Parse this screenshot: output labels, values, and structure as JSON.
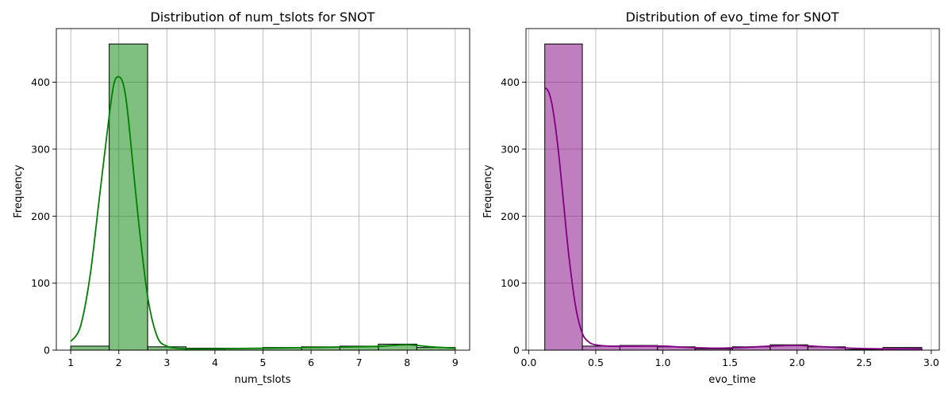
{
  "chart_data": [
    {
      "type": "bar",
      "title": "Distribution of num_tslots for SNOT",
      "xlabel": "num_tslots",
      "ylabel": "Frequency",
      "xlim": [
        0.7,
        9.3
      ],
      "ylim": [
        0,
        480
      ],
      "grid": true,
      "x_ticks": [
        1,
        2,
        3,
        4,
        5,
        6,
        7,
        8,
        9
      ],
      "y_ticks": [
        0,
        100,
        200,
        300,
        400
      ],
      "bar_color": "#008000",
      "bins": [
        {
          "x0": 1.0,
          "x1": 1.8,
          "count": 6
        },
        {
          "x0": 1.8,
          "x1": 2.6,
          "count": 457
        },
        {
          "x0": 2.6,
          "x1": 3.4,
          "count": 5
        },
        {
          "x0": 3.4,
          "x1": 4.2,
          "count": 3
        },
        {
          "x0": 4.2,
          "x1": 5.0,
          "count": 3
        },
        {
          "x0": 5.0,
          "x1": 5.8,
          "count": 4
        },
        {
          "x0": 5.8,
          "x1": 6.6,
          "count": 5
        },
        {
          "x0": 6.6,
          "x1": 7.4,
          "count": 6
        },
        {
          "x0": 7.4,
          "x1": 8.2,
          "count": 9
        },
        {
          "x0": 8.2,
          "x1": 9.0,
          "count": 4
        }
      ],
      "kde": {
        "x": [
          1.0,
          1.2,
          1.4,
          1.6,
          1.8,
          1.9,
          2.0,
          2.1,
          2.2,
          2.4,
          2.6,
          2.8,
          3.0,
          3.2,
          3.4,
          4.0,
          5.0,
          6.0,
          7.0,
          7.5,
          8.0,
          8.5,
          9.0
        ],
        "y": [
          13,
          35,
          110,
          230,
          350,
          398,
          408,
          395,
          345,
          200,
          80,
          20,
          6,
          3,
          2,
          2,
          3,
          4,
          5,
          6,
          8,
          5,
          3
        ]
      }
    },
    {
      "type": "bar",
      "title": "Distribution of evo_time for SNOT",
      "xlabel": "evo_time",
      "ylabel": "Frequency",
      "xlim": [
        -0.02,
        3.06
      ],
      "ylim": [
        0,
        480
      ],
      "grid": true,
      "x_ticks": [
        0.0,
        0.5,
        1.0,
        1.5,
        2.0,
        2.5,
        3.0
      ],
      "x_tick_labels": [
        "0.0",
        "0.5",
        "1.0",
        "1.5",
        "2.0",
        "2.5",
        "3.0"
      ],
      "y_ticks": [
        0,
        100,
        200,
        300,
        400
      ],
      "bar_color": "#800080",
      "bins": [
        {
          "x0": 0.12,
          "x1": 0.4,
          "count": 457
        },
        {
          "x0": 0.4,
          "x1": 0.68,
          "count": 6
        },
        {
          "x0": 0.68,
          "x1": 0.96,
          "count": 7
        },
        {
          "x0": 0.96,
          "x1": 1.24,
          "count": 5
        },
        {
          "x0": 1.24,
          "x1": 1.52,
          "count": 2
        },
        {
          "x0": 1.52,
          "x1": 1.8,
          "count": 5
        },
        {
          "x0": 1.8,
          "x1": 2.08,
          "count": 8
        },
        {
          "x0": 2.08,
          "x1": 2.36,
          "count": 5
        },
        {
          "x0": 2.36,
          "x1": 2.64,
          "count": 1
        },
        {
          "x0": 2.64,
          "x1": 2.93,
          "count": 4
        }
      ],
      "kde": {
        "x": [
          0.12,
          0.15,
          0.18,
          0.22,
          0.26,
          0.3,
          0.35,
          0.4,
          0.45,
          0.5,
          0.6,
          0.8,
          1.0,
          1.2,
          1.4,
          1.6,
          1.8,
          2.0,
          2.2,
          2.4,
          2.6,
          2.8,
          2.93
        ],
        "y": [
          392,
          385,
          360,
          300,
          220,
          140,
          65,
          25,
          12,
          8,
          6,
          6,
          6,
          4,
          3,
          4,
          6,
          7,
          5,
          3,
          2,
          2,
          2
        ]
      }
    }
  ]
}
